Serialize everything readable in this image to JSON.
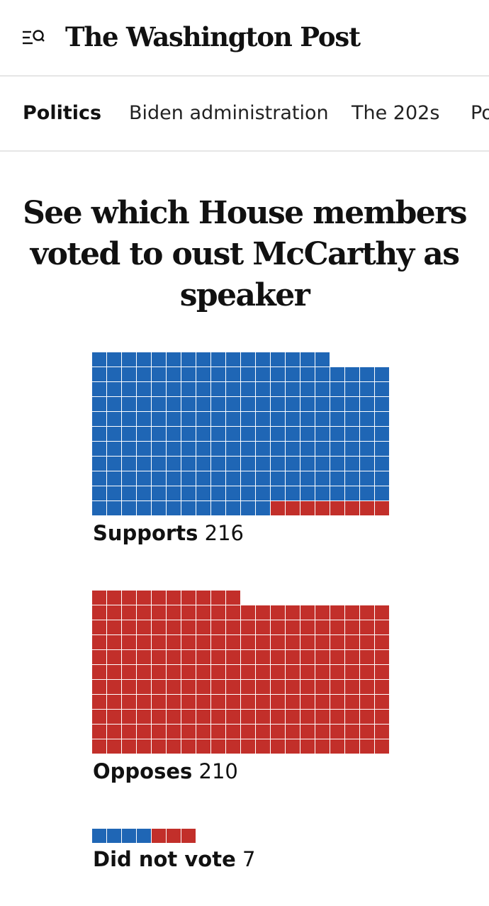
{
  "header": {
    "logo_text": "The Washington Post",
    "menu_icon": "menu-search-icon"
  },
  "nav": {
    "items": [
      {
        "label": "Politics",
        "active": true
      },
      {
        "label": "Biden administration",
        "active": false
      },
      {
        "label": "The 202s",
        "active": false
      },
      {
        "label": "Po",
        "active": false
      }
    ]
  },
  "headline": "See which House members voted to oust McCarthy as speaker",
  "colors": {
    "democrat": "#1f66b5",
    "republican": "#c22f2a"
  },
  "chart_data": {
    "type": "waffle",
    "title": "See which House members voted to oust McCarthy as speaker",
    "columns": 20,
    "groups": [
      {
        "label": "Supports",
        "count": "216",
        "democrats": 208,
        "republicans": 8
      },
      {
        "label": "Opposes",
        "count": "210",
        "democrats": 0,
        "republicans": 210
      },
      {
        "label": "Did not vote",
        "count": "7",
        "democrats": 4,
        "republicans": 3
      }
    ]
  }
}
